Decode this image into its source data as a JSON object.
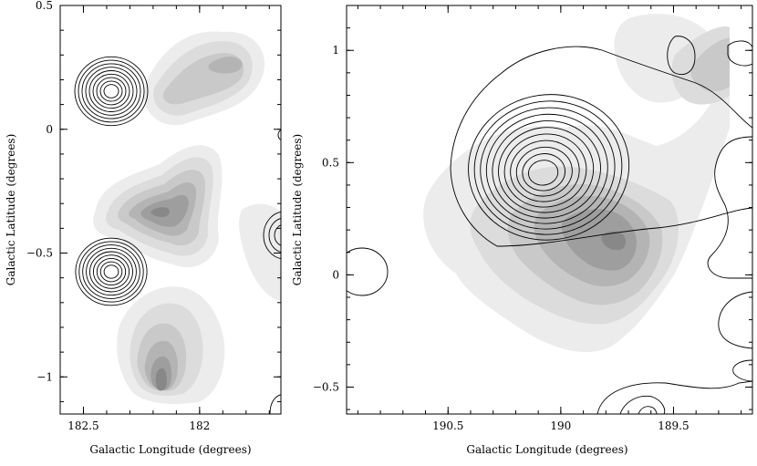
{
  "chart_data": [
    {
      "type": "heatmap",
      "panel": "left",
      "xlabel": "Galactic Longitude (degrees)",
      "ylabel": "Galactic Latitude (degrees)",
      "xlim": [
        182.6,
        181.65
      ],
      "ylim": [
        -1.15,
        0.5
      ],
      "x_reversed": true,
      "xticks": [
        182.5,
        182,
        181.5
      ],
      "xtick_labels": [
        "182.5",
        "182",
        ""
      ],
      "yticks": [
        0.5,
        0,
        -0.5,
        -1
      ],
      "ytick_labels": [
        "0.5",
        "0",
        "−0.5",
        "−1"
      ],
      "greyscale_levels": [
        1,
        2,
        3,
        4,
        5,
        6
      ],
      "greyscale_colors": [
        "#ececec",
        "#dcdcdc",
        "#c9c9c9",
        "#b4b4b4",
        "#9e9e9e",
        "#888888"
      ],
      "greyscale_peaks": [
        {
          "l": 182.15,
          "b": -0.33,
          "level": 6
        },
        {
          "l": 182.0,
          "b": 0.32,
          "level": 4
        },
        {
          "l": 182.13,
          "b": 0.18,
          "level": 3
        },
        {
          "l": 182.15,
          "b": -1.1,
          "level": 6
        }
      ],
      "contour_sources": [
        {
          "l": 182.38,
          "b": 0.2,
          "levels": 9
        },
        {
          "l": 182.38,
          "b": -0.62,
          "levels": 9
        },
        {
          "l": 181.62,
          "b": -0.45,
          "levels": 3
        },
        {
          "l": 181.62,
          "b": 0.0,
          "levels": 1
        }
      ]
    },
    {
      "type": "heatmap",
      "panel": "right",
      "xlabel": "Galactic Longitude (degrees)",
      "ylabel": "Galactic Latitude (degrees)",
      "xlim": [
        190.95,
        189.15
      ],
      "ylim": [
        -0.62,
        1.2
      ],
      "x_reversed": true,
      "xticks": [
        190.5,
        190,
        189.5
      ],
      "xtick_labels": [
        "190.5",
        "190",
        "189.5"
      ],
      "yticks": [
        1,
        0.5,
        0,
        -0.5
      ],
      "ytick_labels": [
        "1",
        "0.5",
        "0",
        "−0.5"
      ],
      "greyscale_levels": [
        1,
        2,
        3,
        4,
        5,
        6
      ],
      "greyscale_colors": [
        "#ececec",
        "#dcdcdc",
        "#c9c9c9",
        "#b4b4b4",
        "#9e9e9e",
        "#888888"
      ],
      "greyscale_peaks": [
        {
          "l": 189.72,
          "b": 0.18,
          "level": 6
        },
        {
          "l": 189.3,
          "b": 1.0,
          "level": 5
        }
      ],
      "contour_sources": [
        {
          "l": 189.98,
          "b": 0.45,
          "levels": 11
        },
        {
          "l": 189.35,
          "b": 0.92,
          "levels": 1
        },
        {
          "l": 189.3,
          "b": 0.95,
          "levels": 1
        },
        {
          "l": 190.82,
          "b": 0.0,
          "levels": 1
        },
        {
          "l": 189.6,
          "b": -0.58,
          "levels": 3
        }
      ]
    }
  ]
}
